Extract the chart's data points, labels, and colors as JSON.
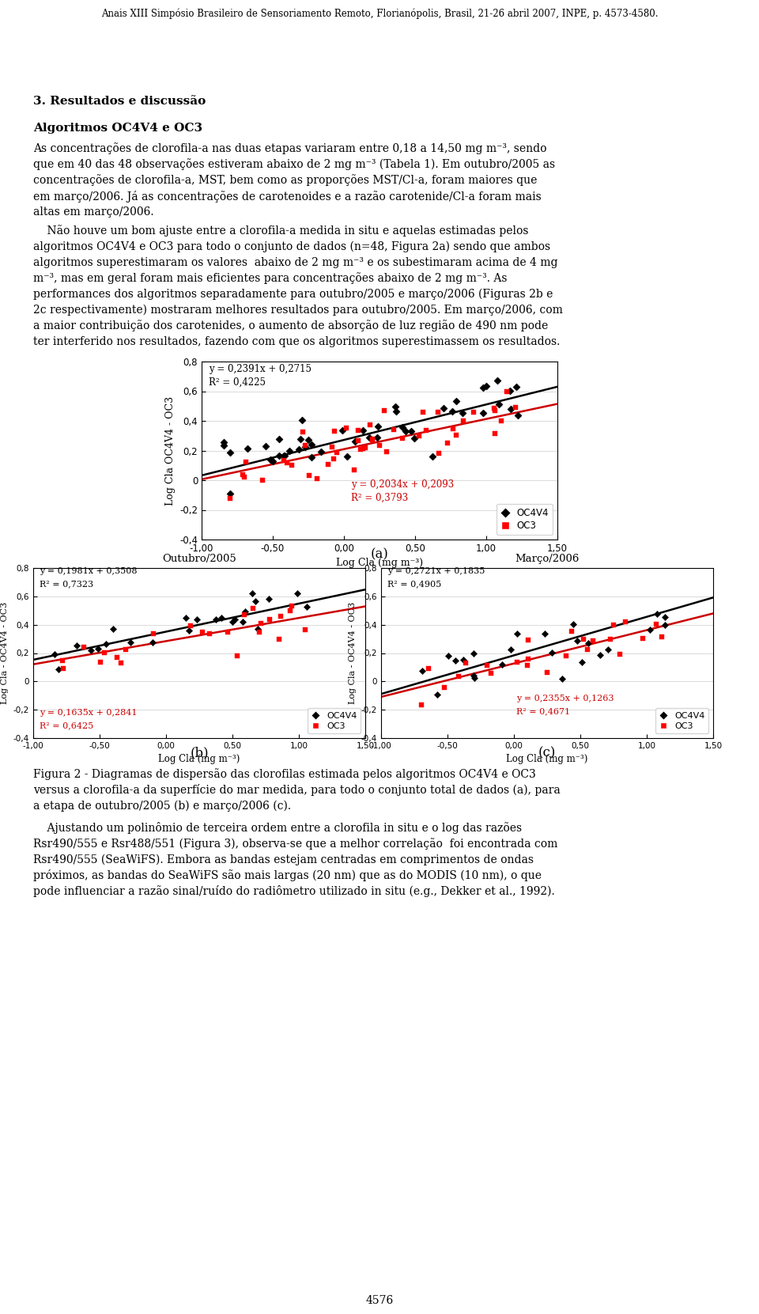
{
  "header": "Anais XIII Simpósio Brasileiro de Sensoriamento Remoto, Florianópolis, Brasil, 21-26 abril 2007, INPE, p. 4573-4580.",
  "section_title": "3. Resultados e discussão",
  "subsection_title": "Algoritmos OC4V4 e OC3",
  "footer": "4576",
  "plot_a": {
    "xlabel": "Log Cla (mg m⁻³)",
    "ylabel": "Log Cla OC4V4 - OC3",
    "xlim": [
      -1.0,
      1.5
    ],
    "ylim": [
      -0.4,
      0.8
    ],
    "xticks": [
      -1.0,
      -0.5,
      0.0,
      0.5,
      1.0,
      1.5
    ],
    "yticks": [
      -0.4,
      -0.2,
      0.0,
      0.2,
      0.4,
      0.6,
      0.8
    ],
    "xtick_labels": [
      "-1,00",
      "-0,50",
      "0,00",
      "0,50",
      "1,00",
      "1,50"
    ],
    "ytick_labels": [
      "-0,4",
      "-0,2",
      "0",
      "0,2",
      "0,4",
      "0,6",
      "0,8"
    ],
    "line1_eq": "y = 0,2391x + 0,2715",
    "line1_r2": "R² = 0,4225",
    "line2_eq": "y = 0,2034x + 0,2093",
    "line2_r2": "R² = 0,3793",
    "line1_slope": 0.2391,
    "line1_intercept": 0.2715,
    "line2_slope": 0.2034,
    "line2_intercept": 0.2093
  },
  "plot_b": {
    "title": "Outubro/2005",
    "xlabel": "Log Cla (mg m⁻³)",
    "ylabel": "Log Cla - OC4V4 - OC3",
    "xlim": [
      -1.0,
      1.5
    ],
    "ylim": [
      -0.4,
      0.8
    ],
    "xticks": [
      -1.0,
      -0.5,
      0.0,
      0.5,
      1.0,
      1.5
    ],
    "yticks": [
      -0.4,
      -0.2,
      0.0,
      0.2,
      0.4,
      0.6,
      0.8
    ],
    "xtick_labels": [
      "-1,00",
      "-0,50",
      "0,00",
      "0,50",
      "1,00",
      "1,50"
    ],
    "ytick_labels": [
      "-0,4",
      "-0,2",
      "0",
      "0,2",
      "0,4",
      "0,6",
      "0,8"
    ],
    "line1_eq": "y = 0,1981x + 0,3508",
    "line1_r2": "R² = 0,7323",
    "line2_eq": "y = 0,1635x + 0,2841",
    "line2_r2": "R² = 0,6425",
    "line1_slope": 0.1981,
    "line1_intercept": 0.3508,
    "line2_slope": 0.1635,
    "line2_intercept": 0.2841
  },
  "plot_c": {
    "title": "Março/2006",
    "xlabel": "Log Cla (mg m⁻³)",
    "ylabel": "Log Cla - OC4V4 - OC3",
    "xlim": [
      -1.0,
      1.5
    ],
    "ylim": [
      -0.4,
      0.8
    ],
    "xticks": [
      -1.0,
      -0.5,
      0.0,
      0.5,
      1.0,
      1.5
    ],
    "yticks": [
      -0.4,
      -0.2,
      0.0,
      0.2,
      0.4,
      0.6,
      0.8
    ],
    "xtick_labels": [
      "-1,00",
      "-0,50",
      "0,00",
      "0,50",
      "1,00",
      "1,50"
    ],
    "ytick_labels": [
      "-0,4",
      "-0,2",
      "0",
      "0,2",
      "0,4",
      "0,6",
      "0,8"
    ],
    "line1_eq": "y = 0,2721x + 0,1835",
    "line1_r2": "R² = 0,4905",
    "line2_eq": "y = 0,2355x + 0,1263",
    "line2_r2": "R² = 0,4671",
    "line1_slope": 0.2721,
    "line1_intercept": 0.1835,
    "line2_slope": 0.2355,
    "line2_intercept": 0.1263
  },
  "black_color": "#000000",
  "red_color": "#cc0000",
  "bg_color": "#ffffff",
  "p1_lines": [
    "As concentrações de clorofila-a nas duas etapas variaram entre 0,18 a 14,50 mg m⁻³, sendo",
    "que em 40 das 48 observações estiveram abaixo de 2 mg m⁻³ (Tabela 1). Em outubro/2005 as",
    "concentrações de clorofila-a, MST, bem como as proporções MST/Cl-a, foram maiores que",
    "em março/2006. Já as concentrações de carotenoides e a razão carotenide/Cl-a foram mais",
    "altas em março/2006."
  ],
  "p2_lines": [
    "    Não houve um bom ajuste entre a clorofila-a medida in situ e aquelas estimadas pelos",
    "algoritmos OC4V4 e OC3 para todo o conjunto de dados (n=48, Figura 2a) sendo que ambos",
    "algoritmos superestimaram os valores  abaixo de 2 mg m⁻³ e os subestimaram acima de 4 mg",
    "m⁻³, mas em geral foram mais eficientes para concentrações abaixo de 2 mg m⁻³. As",
    "performances dos algoritmos separadamente para outubro/2005 e março/2006 (Figuras 2b e",
    "2c respectivamente) mostraram melhores resultados para outubro/2005. Em março/2006, com",
    "a maior contribuição dos carotenides, o aumento de absorção de luz região de 490 nm pode",
    "ter interferido nos resultados, fazendo com que os algoritmos superestimassem os resultados."
  ],
  "cap_lines": [
    "Figura 2 - Diagramas de dispersão das clorofilas estimada pelos algoritmos OC4V4 e OC3",
    "versus a clorofila-a da superfície do mar medida, para todo o conjunto total de dados (a), para",
    "a etapa de outubro/2005 (b) e março/2006 (c)."
  ],
  "p3_lines": [
    "    Ajustando um polinômio de terceira ordem entre a clorofila in situ e o log das razões",
    "Rsr490/555 e Rsr488/551 (Figura 3), observa-se que a melhor correlação  foi encontrada com",
    "Rsr490/555 (SeaWiFS). Embora as bandas estejam centradas em comprimentos de ondas",
    "próximos, as bandas do SeaWiFS são mais largas (20 nm) que as do MODIS (10 nm), o que",
    "pode influenciar a razão sinal/ruído do radiômetro utilizado in situ (e.g., Dekker et al., 1992)."
  ]
}
